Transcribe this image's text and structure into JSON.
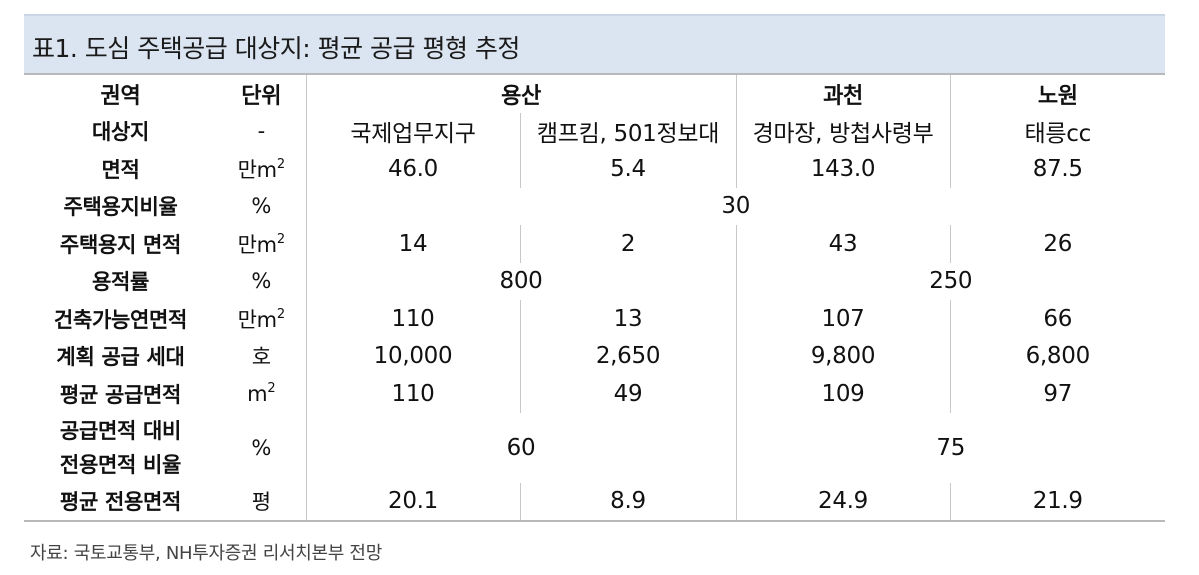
{
  "title": "표1. 도심 주택공급 대상지: 평균 공급 평형 추정",
  "header": {
    "region_label": "권역",
    "unit_label": "단위",
    "yongsan": "용산",
    "gwacheon": "과천",
    "nowon": "노원"
  },
  "rows": {
    "site": {
      "label": "대상지",
      "unit": "-",
      "values": [
        "국제업무지구",
        "캠프킴, 501정보대",
        "경마장, 방첩사령부",
        "태릉cc"
      ]
    },
    "area": {
      "label": "면적",
      "unit": "만m",
      "unit_sup": "2",
      "values": [
        "46.0",
        "5.4",
        "143.0",
        "87.5"
      ]
    },
    "housing_ratio": {
      "label": "주택용지비율",
      "unit": "%",
      "value": "30"
    },
    "housing_area": {
      "label": "주택용지 면적",
      "unit": "만m",
      "unit_sup": "2",
      "values": [
        "14",
        "2",
        "43",
        "26"
      ]
    },
    "far": {
      "label": "용적률",
      "unit": "%",
      "values": [
        "800",
        "250"
      ]
    },
    "buildable_area": {
      "label": "건축가능연면적",
      "unit": "만m",
      "unit_sup": "2",
      "values": [
        "110",
        "13",
        "107",
        "66"
      ]
    },
    "planned_units": {
      "label": "계획 공급 세대",
      "unit": "호",
      "values": [
        "10,000",
        "2,650",
        "9,800",
        "6,800"
      ]
    },
    "avg_supply_area": {
      "label": "평균 공급면적",
      "unit": "m",
      "unit_sup": "2",
      "values": [
        "110",
        "49",
        "109",
        "97"
      ]
    },
    "exclusive_ratio": {
      "label_line1": "공급면적 대비",
      "label_line2": "전용면적 비율",
      "unit": "%",
      "values": [
        "60",
        "75"
      ]
    },
    "avg_exclusive_area": {
      "label": "평균 전용면적",
      "unit": "평",
      "values": [
        "20.1",
        "8.9",
        "24.9",
        "21.9"
      ]
    }
  },
  "source": "자료: 국토교통부, NH투자증권 리서치본부 전망"
}
